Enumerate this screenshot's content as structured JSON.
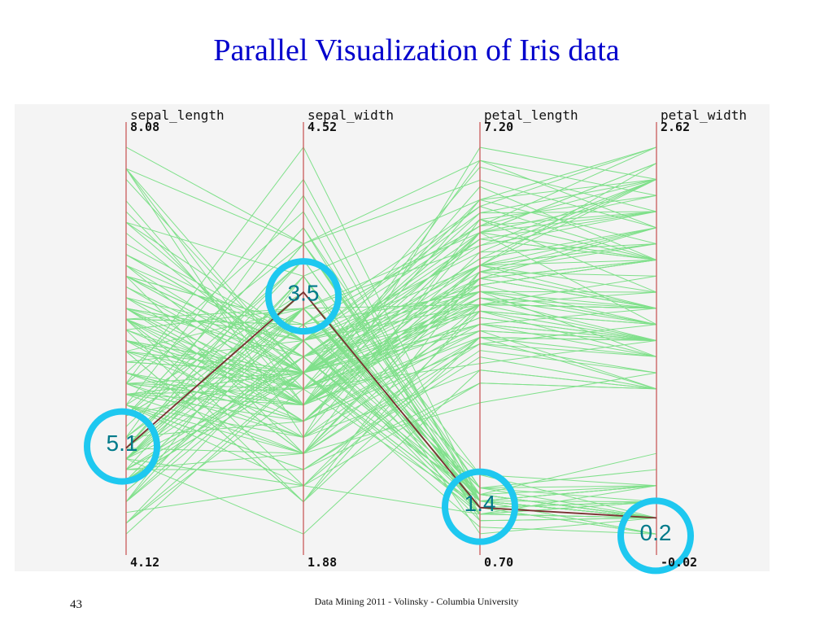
{
  "slide": {
    "title": "Parallel Visualization of Iris data",
    "footer": "Data Mining 2011  - Volinsky - Columbia University",
    "page_number": "43"
  },
  "chart_data": {
    "type": "parallel_coordinates",
    "title": "",
    "axes": [
      {
        "name": "sepal_length",
        "max": 8.08,
        "min": 4.12,
        "max_label": "8.08",
        "min_label": "4.12"
      },
      {
        "name": "sepal_width",
        "max": 4.52,
        "min": 1.88,
        "max_label": "4.52",
        "min_label": "1.88"
      },
      {
        "name": "petal_length",
        "max": 7.2,
        "min": 0.7,
        "max_label": "7.20",
        "min_label": "0.70"
      },
      {
        "name": "petal_width",
        "max": 2.62,
        "min": -0.02,
        "max_label": "2.62",
        "min_label": "-0.02"
      }
    ],
    "highlighted_record": {
      "values": [
        5.1,
        3.5,
        1.4,
        0.2
      ],
      "labels": [
        "5.1",
        "3.5",
        "1.4",
        "0.2"
      ]
    },
    "colors": {
      "lines": "#7fe08a",
      "highlight": "#7a3030",
      "axis": "#cc6666",
      "circle": "#1ec8f0"
    },
    "records": [
      [
        5.1,
        3.5,
        1.4,
        0.2
      ],
      [
        4.9,
        3.0,
        1.4,
        0.2
      ],
      [
        4.7,
        3.2,
        1.3,
        0.2
      ],
      [
        4.6,
        3.1,
        1.5,
        0.2
      ],
      [
        5.0,
        3.6,
        1.4,
        0.2
      ],
      [
        5.4,
        3.9,
        1.7,
        0.4
      ],
      [
        4.6,
        3.4,
        1.4,
        0.3
      ],
      [
        5.0,
        3.4,
        1.5,
        0.2
      ],
      [
        4.4,
        2.9,
        1.4,
        0.2
      ],
      [
        4.9,
        3.1,
        1.5,
        0.1
      ],
      [
        5.4,
        3.7,
        1.5,
        0.2
      ],
      [
        4.8,
        3.4,
        1.6,
        0.2
      ],
      [
        4.8,
        3.0,
        1.4,
        0.1
      ],
      [
        4.3,
        3.0,
        1.1,
        0.1
      ],
      [
        5.8,
        4.0,
        1.2,
        0.2
      ],
      [
        5.7,
        4.4,
        1.5,
        0.4
      ],
      [
        5.4,
        3.9,
        1.3,
        0.4
      ],
      [
        5.1,
        3.5,
        1.4,
        0.3
      ],
      [
        5.7,
        3.8,
        1.7,
        0.3
      ],
      [
        5.1,
        3.8,
        1.5,
        0.3
      ],
      [
        5.4,
        3.4,
        1.7,
        0.2
      ],
      [
        5.1,
        3.7,
        1.5,
        0.4
      ],
      [
        4.6,
        3.6,
        1.0,
        0.2
      ],
      [
        5.1,
        3.3,
        1.7,
        0.5
      ],
      [
        4.8,
        3.4,
        1.9,
        0.2
      ],
      [
        5.0,
        3.0,
        1.6,
        0.2
      ],
      [
        5.0,
        3.4,
        1.6,
        0.4
      ],
      [
        5.2,
        3.5,
        1.5,
        0.2
      ],
      [
        5.2,
        3.4,
        1.4,
        0.2
      ],
      [
        4.7,
        3.2,
        1.6,
        0.2
      ],
      [
        4.8,
        3.1,
        1.6,
        0.2
      ],
      [
        5.4,
        3.4,
        1.5,
        0.4
      ],
      [
        5.2,
        4.1,
        1.5,
        0.1
      ],
      [
        5.5,
        4.2,
        1.4,
        0.2
      ],
      [
        4.9,
        3.1,
        1.5,
        0.2
      ],
      [
        5.0,
        3.2,
        1.2,
        0.2
      ],
      [
        5.5,
        3.5,
        1.3,
        0.2
      ],
      [
        4.9,
        3.6,
        1.4,
        0.1
      ],
      [
        4.4,
        3.0,
        1.3,
        0.2
      ],
      [
        5.1,
        3.4,
        1.5,
        0.2
      ],
      [
        5.0,
        3.5,
        1.3,
        0.3
      ],
      [
        4.5,
        2.3,
        1.3,
        0.3
      ],
      [
        4.4,
        3.2,
        1.3,
        0.2
      ],
      [
        5.0,
        3.5,
        1.6,
        0.6
      ],
      [
        5.1,
        3.8,
        1.9,
        0.4
      ],
      [
        4.8,
        3.0,
        1.4,
        0.3
      ],
      [
        5.1,
        3.8,
        1.6,
        0.2
      ],
      [
        4.6,
        3.2,
        1.4,
        0.2
      ],
      [
        5.3,
        3.7,
        1.5,
        0.2
      ],
      [
        5.0,
        3.3,
        1.4,
        0.2
      ],
      [
        7.0,
        3.2,
        4.7,
        1.4
      ],
      [
        6.4,
        3.2,
        4.5,
        1.5
      ],
      [
        6.9,
        3.1,
        4.9,
        1.5
      ],
      [
        5.5,
        2.3,
        4.0,
        1.3
      ],
      [
        6.5,
        2.8,
        4.6,
        1.5
      ],
      [
        5.7,
        2.8,
        4.5,
        1.3
      ],
      [
        6.3,
        3.3,
        4.7,
        1.6
      ],
      [
        4.9,
        2.4,
        3.3,
        1.0
      ],
      [
        6.6,
        2.9,
        4.6,
        1.3
      ],
      [
        5.2,
        2.7,
        3.9,
        1.4
      ],
      [
        5.0,
        2.0,
        3.5,
        1.0
      ],
      [
        5.9,
        3.0,
        4.2,
        1.5
      ],
      [
        6.0,
        2.2,
        4.0,
        1.0
      ],
      [
        6.1,
        2.9,
        4.7,
        1.4
      ],
      [
        5.6,
        2.9,
        3.6,
        1.3
      ],
      [
        6.7,
        3.1,
        4.4,
        1.4
      ],
      [
        5.6,
        3.0,
        4.5,
        1.5
      ],
      [
        5.8,
        2.7,
        4.1,
        1.0
      ],
      [
        6.2,
        2.2,
        4.5,
        1.5
      ],
      [
        5.6,
        2.5,
        3.9,
        1.1
      ],
      [
        5.9,
        3.2,
        4.8,
        1.8
      ],
      [
        6.1,
        2.8,
        4.0,
        1.3
      ],
      [
        6.3,
        2.5,
        4.9,
        1.5
      ],
      [
        6.1,
        2.8,
        4.7,
        1.2
      ],
      [
        6.4,
        2.9,
        4.3,
        1.3
      ],
      [
        6.6,
        3.0,
        4.4,
        1.4
      ],
      [
        6.8,
        2.8,
        4.8,
        1.4
      ],
      [
        6.7,
        3.0,
        5.0,
        1.7
      ],
      [
        6.0,
        2.9,
        4.5,
        1.5
      ],
      [
        5.7,
        2.6,
        3.5,
        1.0
      ],
      [
        5.5,
        2.4,
        3.8,
        1.1
      ],
      [
        5.5,
        2.4,
        3.7,
        1.0
      ],
      [
        5.8,
        2.7,
        3.9,
        1.2
      ],
      [
        6.0,
        2.7,
        5.1,
        1.6
      ],
      [
        5.4,
        3.0,
        4.5,
        1.5
      ],
      [
        6.0,
        3.4,
        4.5,
        1.6
      ],
      [
        6.7,
        3.1,
        4.7,
        1.5
      ],
      [
        6.3,
        2.3,
        4.4,
        1.3
      ],
      [
        5.6,
        3.0,
        4.1,
        1.3
      ],
      [
        5.5,
        2.5,
        4.0,
        1.3
      ],
      [
        5.5,
        2.6,
        4.4,
        1.2
      ],
      [
        6.1,
        3.0,
        4.6,
        1.4
      ],
      [
        5.8,
        2.6,
        4.0,
        1.2
      ],
      [
        5.0,
        2.3,
        3.3,
        1.0
      ],
      [
        5.6,
        2.7,
        4.2,
        1.3
      ],
      [
        5.7,
        3.0,
        4.2,
        1.2
      ],
      [
        5.7,
        2.9,
        4.2,
        1.3
      ],
      [
        6.2,
        2.9,
        4.3,
        1.3
      ],
      [
        5.1,
        2.5,
        3.0,
        1.1
      ],
      [
        5.7,
        2.8,
        4.1,
        1.3
      ],
      [
        6.3,
        3.3,
        6.0,
        2.5
      ],
      [
        5.8,
        2.7,
        5.1,
        1.9
      ],
      [
        7.1,
        3.0,
        5.9,
        2.1
      ],
      [
        6.3,
        2.9,
        5.6,
        1.8
      ],
      [
        6.5,
        3.0,
        5.8,
        2.2
      ],
      [
        7.6,
        3.0,
        6.6,
        2.1
      ],
      [
        4.9,
        2.5,
        4.5,
        1.7
      ],
      [
        7.3,
        2.9,
        6.3,
        1.8
      ],
      [
        6.7,
        2.5,
        5.8,
        1.8
      ],
      [
        7.2,
        3.6,
        6.1,
        2.5
      ],
      [
        6.5,
        3.2,
        5.1,
        2.0
      ],
      [
        6.4,
        2.7,
        5.3,
        1.9
      ],
      [
        6.8,
        3.0,
        5.5,
        2.1
      ],
      [
        5.7,
        2.5,
        5.0,
        2.0
      ],
      [
        5.8,
        2.8,
        5.1,
        2.4
      ],
      [
        6.4,
        3.2,
        5.3,
        2.3
      ],
      [
        6.5,
        3.0,
        5.5,
        1.8
      ],
      [
        7.7,
        3.8,
        6.7,
        2.2
      ],
      [
        7.7,
        2.6,
        6.9,
        2.3
      ],
      [
        6.0,
        2.2,
        5.0,
        1.5
      ],
      [
        6.9,
        3.2,
        5.7,
        2.3
      ],
      [
        5.6,
        2.8,
        4.9,
        2.0
      ],
      [
        7.7,
        2.8,
        6.7,
        2.0
      ],
      [
        6.3,
        2.7,
        4.9,
        1.8
      ],
      [
        6.7,
        3.3,
        5.7,
        2.1
      ],
      [
        7.2,
        3.2,
        6.0,
        1.8
      ],
      [
        6.2,
        2.8,
        4.8,
        1.8
      ],
      [
        6.1,
        3.0,
        4.9,
        1.8
      ],
      [
        6.4,
        2.8,
        5.6,
        2.1
      ],
      [
        7.2,
        3.0,
        5.8,
        1.6
      ],
      [
        7.4,
        2.8,
        6.1,
        1.9
      ],
      [
        7.9,
        3.8,
        6.4,
        2.0
      ],
      [
        6.4,
        2.8,
        5.6,
        2.2
      ],
      [
        6.3,
        2.8,
        5.1,
        1.5
      ],
      [
        6.1,
        2.6,
        5.6,
        1.4
      ],
      [
        7.7,
        3.0,
        6.1,
        2.3
      ],
      [
        6.3,
        3.4,
        5.6,
        2.4
      ],
      [
        6.4,
        3.1,
        5.5,
        1.8
      ],
      [
        6.0,
        3.0,
        4.8,
        1.8
      ],
      [
        6.9,
        3.1,
        5.4,
        2.1
      ],
      [
        6.7,
        3.1,
        5.6,
        2.4
      ],
      [
        6.9,
        3.1,
        5.1,
        2.3
      ],
      [
        5.8,
        2.7,
        5.1,
        1.9
      ],
      [
        6.8,
        3.2,
        5.9,
        2.3
      ],
      [
        6.7,
        3.3,
        5.7,
        2.5
      ],
      [
        6.7,
        3.0,
        5.2,
        2.3
      ],
      [
        6.3,
        2.5,
        5.0,
        1.9
      ],
      [
        6.5,
        3.0,
        5.2,
        2.0
      ],
      [
        6.2,
        3.4,
        5.4,
        2.3
      ],
      [
        5.9,
        3.0,
        5.1,
        1.8
      ]
    ]
  }
}
